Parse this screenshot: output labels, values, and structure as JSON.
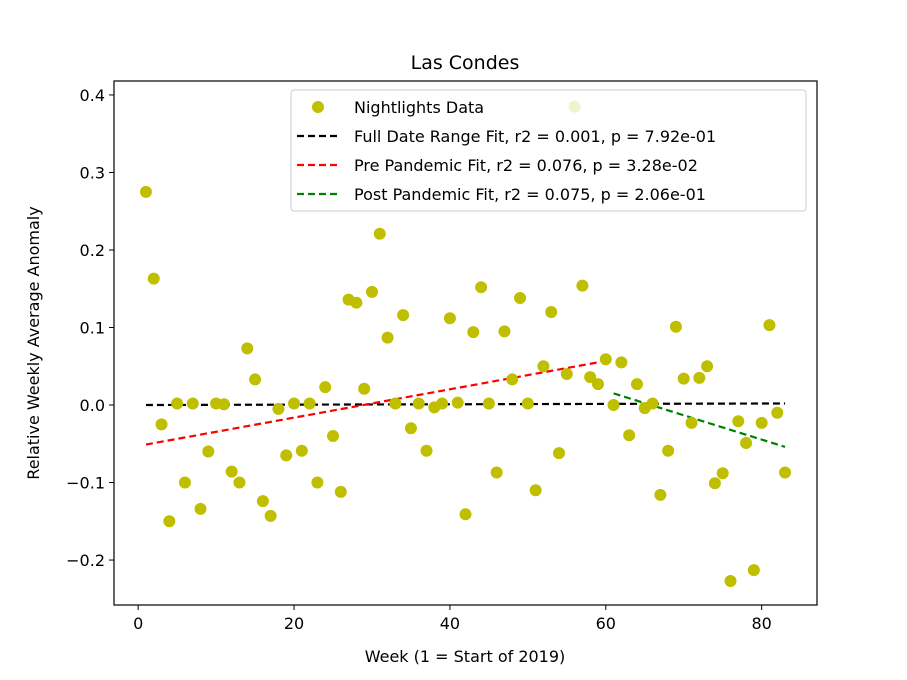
{
  "chart_data": {
    "type": "scatter",
    "title": "Las Condes",
    "xlabel": "Week (1 = Start of 2019)",
    "ylabel": "Relative Weekly Average Anomaly",
    "xlim": [
      -3.1,
      87.1
    ],
    "ylim": [
      -0.258,
      0.418
    ],
    "xticks": [
      0,
      20,
      40,
      60,
      80
    ],
    "yticks": [
      -0.2,
      -0.1,
      0.0,
      0.1,
      0.2,
      0.3,
      0.4
    ],
    "ytick_labels": [
      "−0.2",
      "−0.1",
      "0.0",
      "0.1",
      "0.2",
      "0.3",
      "0.4"
    ],
    "grid": false,
    "legend_position": "upper right",
    "series": [
      {
        "name": "Nightlights Data",
        "kind": "scatter",
        "color": "#bfbf00",
        "points": [
          [
            1,
            0.275
          ],
          [
            2,
            0.163
          ],
          [
            3,
            -0.025
          ],
          [
            4,
            -0.15
          ],
          [
            5,
            0.002
          ],
          [
            6,
            -0.1
          ],
          [
            7,
            0.002
          ],
          [
            8,
            -0.134
          ],
          [
            9,
            -0.06
          ],
          [
            10,
            0.002
          ],
          [
            11,
            0.001
          ],
          [
            12,
            -0.086
          ],
          [
            13,
            -0.1
          ],
          [
            14,
            0.073
          ],
          [
            15,
            0.033
          ],
          [
            16,
            -0.124
          ],
          [
            17,
            -0.143
          ],
          [
            18,
            -0.005
          ],
          [
            19,
            -0.065
          ],
          [
            20,
            0.002
          ],
          [
            21,
            -0.059
          ],
          [
            22,
            0.002
          ],
          [
            23,
            -0.1
          ],
          [
            24,
            0.023
          ],
          [
            25,
            -0.04
          ],
          [
            26,
            -0.112
          ],
          [
            27,
            0.136
          ],
          [
            28,
            0.132
          ],
          [
            29,
            0.021
          ],
          [
            30,
            0.146
          ],
          [
            31,
            0.221
          ],
          [
            32,
            0.087
          ],
          [
            33,
            0.002
          ],
          [
            34,
            0.116
          ],
          [
            35,
            -0.03
          ],
          [
            36,
            0.002
          ],
          [
            37,
            -0.059
          ],
          [
            38,
            -0.003
          ],
          [
            39,
            0.002
          ],
          [
            40,
            0.112
          ],
          [
            41,
            0.003
          ],
          [
            42,
            -0.141
          ],
          [
            43,
            0.094
          ],
          [
            44,
            0.152
          ],
          [
            45,
            0.002
          ],
          [
            46,
            -0.087
          ],
          [
            47,
            0.095
          ],
          [
            48,
            0.033
          ],
          [
            49,
            0.138
          ],
          [
            50,
            0.002
          ],
          [
            51,
            -0.11
          ],
          [
            52,
            0.05
          ],
          [
            53,
            0.12
          ],
          [
            54,
            -0.062
          ],
          [
            55,
            0.04
          ],
          [
            56,
            0.385
          ],
          [
            57,
            0.154
          ],
          [
            58,
            0.036
          ],
          [
            59,
            0.027
          ],
          [
            60,
            0.059
          ],
          [
            61,
            0.0
          ],
          [
            62,
            0.055
          ],
          [
            63,
            -0.039
          ],
          [
            64,
            0.027
          ],
          [
            65,
            -0.004
          ],
          [
            66,
            0.002
          ],
          [
            67,
            -0.116
          ],
          [
            68,
            -0.059
          ],
          [
            69,
            0.101
          ],
          [
            70,
            0.034
          ],
          [
            71,
            -0.023
          ],
          [
            72,
            0.035
          ],
          [
            73,
            0.05
          ],
          [
            74,
            -0.101
          ],
          [
            75,
            -0.088
          ],
          [
            76,
            -0.227
          ],
          [
            77,
            -0.021
          ],
          [
            78,
            -0.049
          ],
          [
            79,
            -0.213
          ],
          [
            80,
            -0.023
          ],
          [
            81,
            0.103
          ],
          [
            82,
            -0.01
          ],
          [
            83,
            -0.087
          ]
        ]
      },
      {
        "name": "Full Date Range Fit, r2 = 0.001, p = 7.92e-01",
        "kind": "line",
        "dash": true,
        "color": "#000000",
        "x": [
          1,
          83
        ],
        "y": [
          0.0,
          0.002
        ]
      },
      {
        "name": "Pre Pandemic Fit, r2 = 0.076, p = 3.28e-02",
        "kind": "line",
        "dash": true,
        "color": "#ff0000",
        "x": [
          1,
          59
        ],
        "y": [
          -0.051,
          0.055
        ]
      },
      {
        "name": "Post Pandemic Fit, r2 = 0.075, p = 2.06e-01",
        "kind": "line",
        "dash": true,
        "color": "#008000",
        "x": [
          61,
          83
        ],
        "y": [
          0.015,
          -0.054
        ]
      }
    ]
  }
}
